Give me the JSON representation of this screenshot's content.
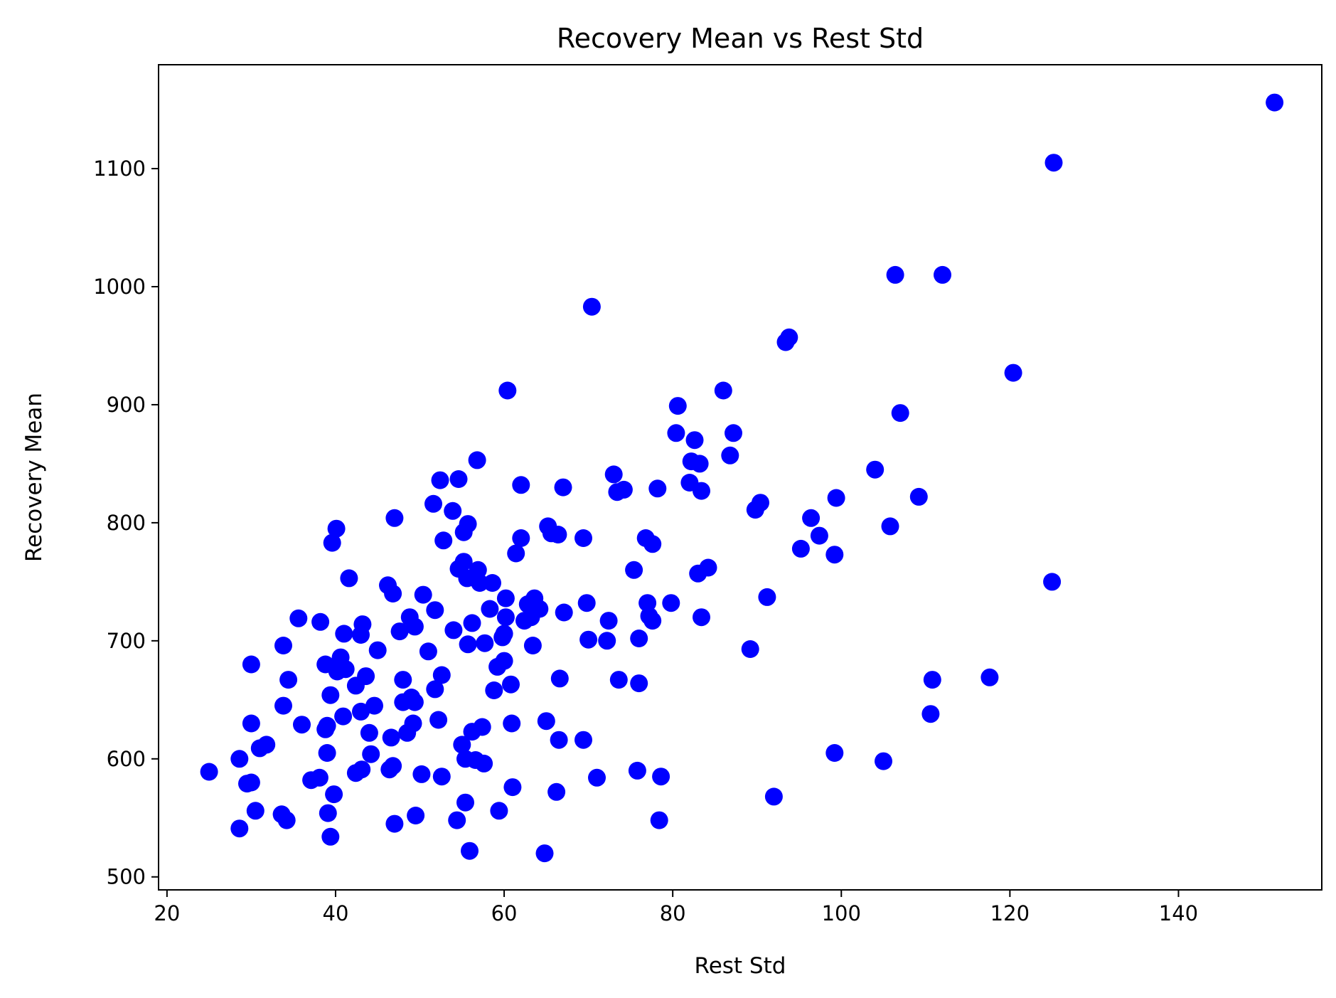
{
  "chart_data": {
    "type": "scatter",
    "title": "Recovery Mean vs Rest Std",
    "xlabel": "Rest Std",
    "ylabel": "Recovery Mean",
    "xlim": [
      19,
      157
    ],
    "ylim": [
      489,
      1188
    ],
    "xticks": [
      20,
      40,
      60,
      80,
      100,
      120,
      140
    ],
    "yticks": [
      500,
      600,
      700,
      800,
      900,
      1000,
      1100
    ],
    "grid": false,
    "marker_color": "#0000ff",
    "points": [
      [
        25.0,
        589
      ],
      [
        28.6,
        600
      ],
      [
        28.6,
        541
      ],
      [
        29.5,
        579
      ],
      [
        30.0,
        630
      ],
      [
        30.0,
        580
      ],
      [
        30.0,
        680
      ],
      [
        30.5,
        556
      ],
      [
        31.0,
        609
      ],
      [
        31.8,
        612
      ],
      [
        33.6,
        553
      ],
      [
        33.8,
        645
      ],
      [
        33.8,
        696
      ],
      [
        34.2,
        548
      ],
      [
        34.4,
        667
      ],
      [
        35.6,
        719
      ],
      [
        36.0,
        629
      ],
      [
        37.1,
        582
      ],
      [
        38.1,
        584
      ],
      [
        38.2,
        716
      ],
      [
        38.8,
        680
      ],
      [
        38.8,
        625
      ],
      [
        39.0,
        628
      ],
      [
        39.0,
        605
      ],
      [
        39.1,
        554
      ],
      [
        39.4,
        654
      ],
      [
        39.4,
        534
      ],
      [
        39.6,
        783
      ],
      [
        39.8,
        570
      ],
      [
        40.1,
        795
      ],
      [
        40.2,
        674
      ],
      [
        40.6,
        686
      ],
      [
        40.9,
        636
      ],
      [
        41.0,
        706
      ],
      [
        41.2,
        676
      ],
      [
        41.6,
        753
      ],
      [
        42.4,
        588
      ],
      [
        42.4,
        662
      ],
      [
        43.0,
        640
      ],
      [
        43.0,
        705
      ],
      [
        43.1,
        591
      ],
      [
        43.2,
        714
      ],
      [
        43.6,
        670
      ],
      [
        44.0,
        622
      ],
      [
        44.2,
        604
      ],
      [
        44.6,
        645
      ],
      [
        45.0,
        692
      ],
      [
        46.2,
        747
      ],
      [
        46.4,
        591
      ],
      [
        46.6,
        618
      ],
      [
        46.8,
        594
      ],
      [
        46.8,
        740
      ],
      [
        47.0,
        545
      ],
      [
        47.0,
        804
      ],
      [
        47.6,
        708
      ],
      [
        48.0,
        648
      ],
      [
        48.0,
        667
      ],
      [
        48.5,
        622
      ],
      [
        48.8,
        720
      ],
      [
        49.0,
        652
      ],
      [
        49.2,
        630
      ],
      [
        49.4,
        712
      ],
      [
        49.4,
        648
      ],
      [
        49.5,
        552
      ],
      [
        50.2,
        587
      ],
      [
        50.4,
        739
      ],
      [
        51.0,
        691
      ],
      [
        51.6,
        816
      ],
      [
        51.8,
        659
      ],
      [
        51.8,
        726
      ],
      [
        52.2,
        633
      ],
      [
        52.4,
        836
      ],
      [
        52.6,
        585
      ],
      [
        52.6,
        671
      ],
      [
        52.8,
        785
      ],
      [
        53.9,
        810
      ],
      [
        54.0,
        709
      ],
      [
        54.4,
        548
      ],
      [
        54.6,
        837
      ],
      [
        54.6,
        761
      ],
      [
        55.0,
        612
      ],
      [
        55.2,
        792
      ],
      [
        55.2,
        767
      ],
      [
        55.4,
        600
      ],
      [
        55.4,
        563
      ],
      [
        55.6,
        753
      ],
      [
        55.7,
        697
      ],
      [
        55.7,
        799
      ],
      [
        55.9,
        522
      ],
      [
        56.2,
        715
      ],
      [
        56.2,
        623
      ],
      [
        56.6,
        599
      ],
      [
        56.8,
        853
      ],
      [
        56.9,
        760
      ],
      [
        57.1,
        749
      ],
      [
        57.4,
        627
      ],
      [
        57.6,
        596
      ],
      [
        57.7,
        698
      ],
      [
        58.3,
        727
      ],
      [
        58.6,
        749
      ],
      [
        58.8,
        658
      ],
      [
        59.2,
        678
      ],
      [
        59.4,
        556
      ],
      [
        59.8,
        703
      ],
      [
        60.0,
        683
      ],
      [
        60.0,
        706
      ],
      [
        60.2,
        736
      ],
      [
        60.2,
        720
      ],
      [
        60.4,
        912
      ],
      [
        60.8,
        663
      ],
      [
        60.9,
        630
      ],
      [
        61.0,
        576
      ],
      [
        61.4,
        774
      ],
      [
        62.0,
        832
      ],
      [
        62.0,
        787
      ],
      [
        62.4,
        717
      ],
      [
        62.8,
        731
      ],
      [
        63.2,
        720
      ],
      [
        63.4,
        696
      ],
      [
        63.6,
        736
      ],
      [
        64.2,
        727
      ],
      [
        64.8,
        520
      ],
      [
        65.0,
        632
      ],
      [
        65.2,
        797
      ],
      [
        65.6,
        791
      ],
      [
        66.2,
        572
      ],
      [
        66.4,
        790
      ],
      [
        66.5,
        616
      ],
      [
        66.6,
        668
      ],
      [
        67.0,
        830
      ],
      [
        67.1,
        724
      ],
      [
        69.4,
        616
      ],
      [
        69.4,
        787
      ],
      [
        69.8,
        732
      ],
      [
        70.0,
        701
      ],
      [
        70.4,
        983
      ],
      [
        71.0,
        584
      ],
      [
        72.2,
        700
      ],
      [
        72.4,
        717
      ],
      [
        73.0,
        841
      ],
      [
        73.4,
        826
      ],
      [
        73.6,
        667
      ],
      [
        74.2,
        828
      ],
      [
        75.4,
        760
      ],
      [
        75.8,
        590
      ],
      [
        76.0,
        664
      ],
      [
        76.0,
        702
      ],
      [
        76.8,
        787
      ],
      [
        77.0,
        732
      ],
      [
        77.2,
        721
      ],
      [
        77.6,
        782
      ],
      [
        77.6,
        717
      ],
      [
        78.2,
        829
      ],
      [
        78.4,
        548
      ],
      [
        78.6,
        585
      ],
      [
        79.8,
        732
      ],
      [
        80.4,
        876
      ],
      [
        80.6,
        899
      ],
      [
        82.0,
        834
      ],
      [
        82.2,
        852
      ],
      [
        82.6,
        870
      ],
      [
        83.0,
        757
      ],
      [
        83.2,
        850
      ],
      [
        83.4,
        720
      ],
      [
        83.4,
        827
      ],
      [
        84.2,
        762
      ],
      [
        86.0,
        912
      ],
      [
        86.8,
        857
      ],
      [
        87.2,
        876
      ],
      [
        89.2,
        693
      ],
      [
        89.8,
        811
      ],
      [
        90.4,
        817
      ],
      [
        91.2,
        737
      ],
      [
        92.0,
        568
      ],
      [
        93.4,
        953
      ],
      [
        93.8,
        957
      ],
      [
        95.2,
        778
      ],
      [
        96.4,
        804
      ],
      [
        97.4,
        789
      ],
      [
        99.2,
        773
      ],
      [
        99.2,
        605
      ],
      [
        99.4,
        821
      ],
      [
        104.0,
        845
      ],
      [
        105.0,
        598
      ],
      [
        105.8,
        797
      ],
      [
        106.4,
        1010
      ],
      [
        107.0,
        893
      ],
      [
        109.2,
        822
      ],
      [
        110.6,
        638
      ],
      [
        110.8,
        667
      ],
      [
        112.0,
        1010
      ],
      [
        117.6,
        669
      ],
      [
        120.4,
        927
      ],
      [
        125.0,
        750
      ],
      [
        125.2,
        1105
      ],
      [
        151.4,
        1156
      ]
    ]
  }
}
